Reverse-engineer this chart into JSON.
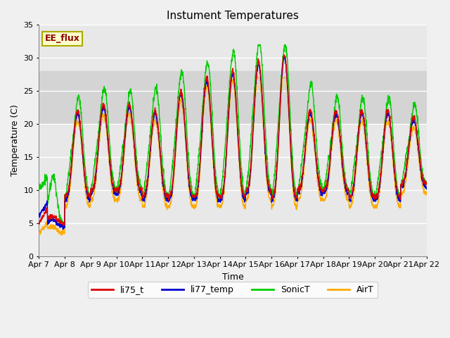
{
  "title": "Instument Temperatures",
  "xlabel": "Time",
  "ylabel": "Temperature (C)",
  "ylim": [
    0,
    35
  ],
  "yticks": [
    0,
    5,
    10,
    15,
    20,
    25,
    30,
    35
  ],
  "x_labels": [
    "Apr 7",
    "Apr 8",
    "Apr 9",
    "Apr 10",
    "Apr 11",
    "Apr 12",
    "Apr 13",
    "Apr 14",
    "Apr 15",
    "Apr 16",
    "Apr 17",
    "Apr 18",
    "Apr 19",
    "Apr 20",
    "Apr 21",
    "Apr 22"
  ],
  "legend_labels": [
    "li75_t",
    "li77_temp",
    "SonicT",
    "AirT"
  ],
  "line_colors": [
    "#dd0000",
    "#0000cc",
    "#00cc00",
    "#ffaa00"
  ],
  "annotation_text": "EE_flux",
  "bg_color": "#e8e8e8",
  "band_lo": 20,
  "band_hi": 28,
  "band_color": "#d4d4d4",
  "fig_bg": "#f0f0f0"
}
